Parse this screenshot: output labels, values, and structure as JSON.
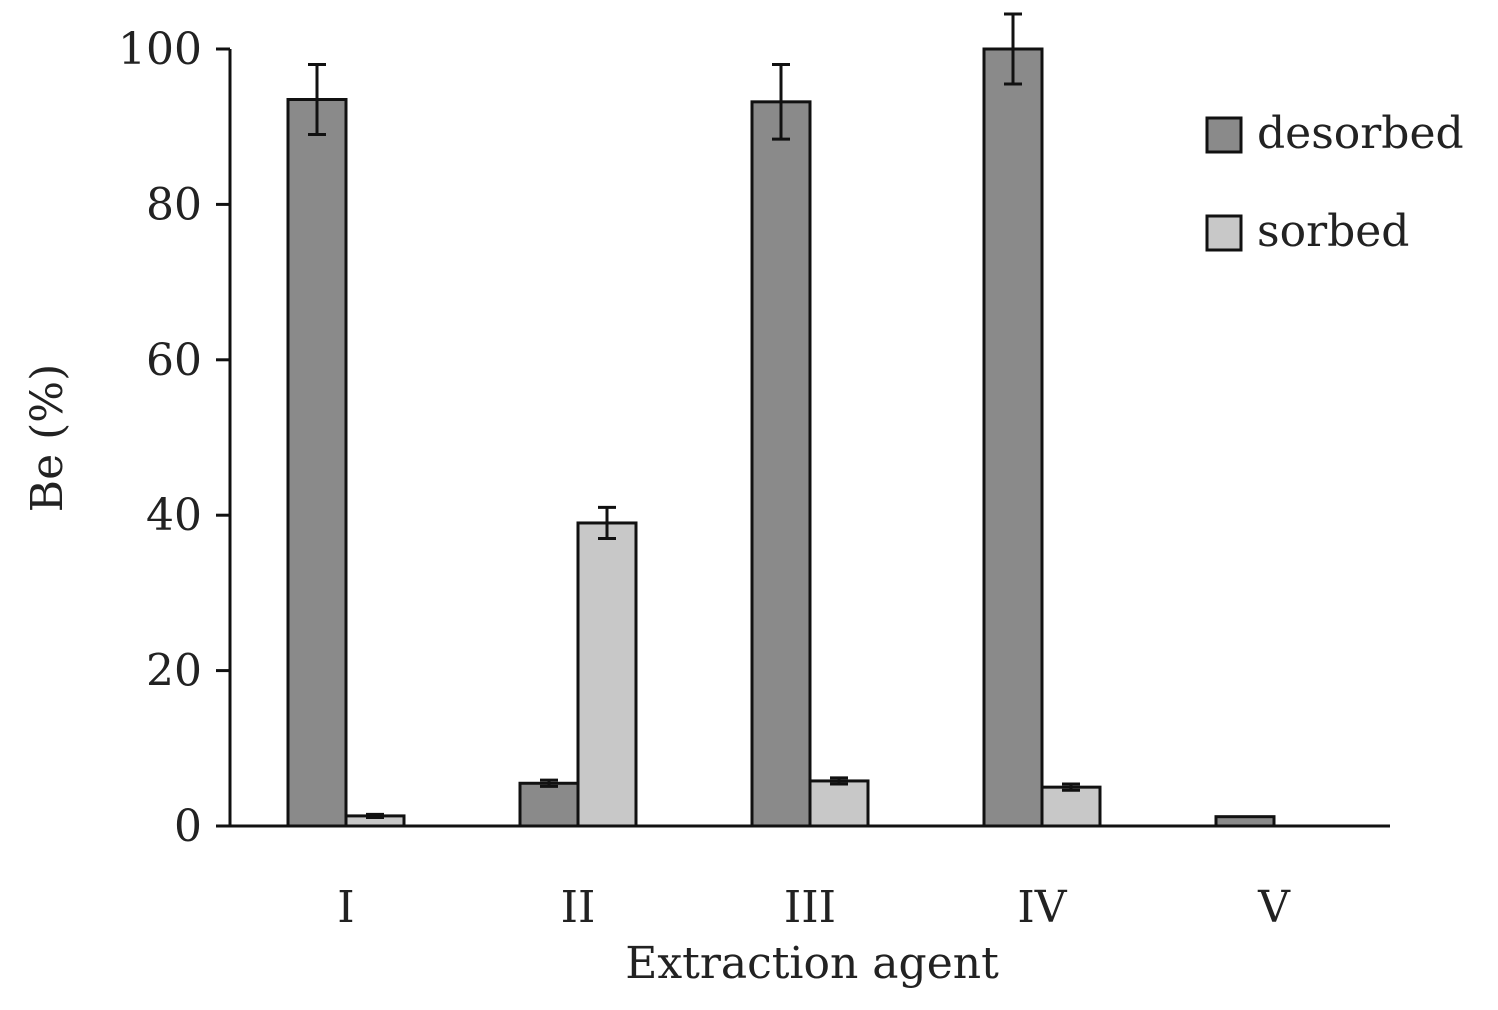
{
  "chart_data": {
    "type": "bar",
    "categories": [
      "I",
      "II",
      "III",
      "IV",
      "V"
    ],
    "series": [
      {
        "name": "desorbed",
        "values": [
          93.5,
          5.5,
          93.2,
          100,
          1.2
        ],
        "errors": [
          4.5,
          0.4,
          4.8,
          4.5,
          0
        ],
        "color": "#8a8a8a"
      },
      {
        "name": "sorbed",
        "values": [
          1.3,
          39,
          5.8,
          5.0,
          0
        ],
        "errors": [
          0.2,
          2.0,
          0.4,
          0.4,
          0
        ],
        "color": "#c8c8c8"
      }
    ],
    "title": "",
    "xlabel": "Extraction agent",
    "ylabel": "Be (%)",
    "ylim": [
      0,
      100
    ],
    "yticks": [
      0,
      20,
      40,
      60,
      80,
      100
    ],
    "grid": false,
    "legend_position": "top-right"
  }
}
